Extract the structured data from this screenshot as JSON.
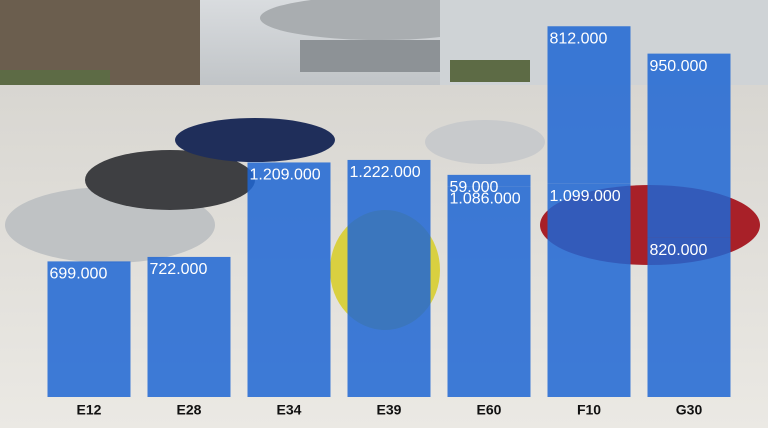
{
  "chart_data": {
    "type": "stacked-bar",
    "categories": [
      "E12",
      "E28",
      "E34",
      "E39",
      "E60",
      "F10",
      "G30"
    ],
    "series": [
      {
        "color": "#1f66d4",
        "values": [
          699000,
          722000,
          1209000,
          1222000,
          1086000,
          1099000,
          820000
        ],
        "value_labels": [
          "699.000",
          "722.000",
          "1.209.000",
          "1.222.000",
          "1.086.000",
          "1.099.000",
          "820.000"
        ]
      },
      {
        "color": "#1f66d4",
        "values": [
          null,
          null,
          null,
          null,
          59000,
          812000,
          950000
        ],
        "value_labels": [
          null,
          null,
          null,
          null,
          "59.000",
          "812.000",
          "950.000"
        ]
      }
    ],
    "ylim": [
      0,
      2000000
    ]
  }
}
